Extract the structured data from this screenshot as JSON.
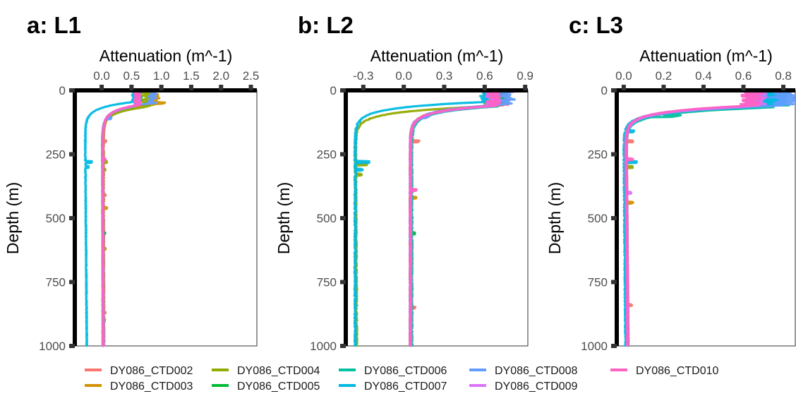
{
  "chart_data": {
    "type": "line",
    "y_axis_label": "Depth (m)",
    "x_axis_label": "Attenuation (m^-1)",
    "y_ticks": [
      "0",
      "250",
      "500",
      "750",
      "1000"
    ],
    "ylim": [
      1000,
      0
    ],
    "legend_position": "bottom",
    "grid": false,
    "legend": [
      {
        "name": "DY086_CTD002",
        "color": "#F8766D"
      },
      {
        "name": "DY086_CTD003",
        "color": "#D39200"
      },
      {
        "name": "DY086_CTD004",
        "color": "#93AA00"
      },
      {
        "name": "DY086_CTD005",
        "color": "#00BA38"
      },
      {
        "name": "DY086_CTD006",
        "color": "#00C19F"
      },
      {
        "name": "DY086_CTD007",
        "color": "#00B9E3"
      },
      {
        "name": "DY086_CTD008",
        "color": "#619CFF"
      },
      {
        "name": "DY086_CTD009",
        "color": "#DB72FB"
      },
      {
        "name": "DY086_CTD010",
        "color": "#FF61C3"
      }
    ],
    "panels": [
      {
        "title": "a: L1",
        "x_ticks": [
          {
            "label": "0.0",
            "value": 0.0
          },
          {
            "label": "0.5",
            "value": 0.5
          },
          {
            "label": "1.0",
            "value": 1.0
          },
          {
            "label": "1.5",
            "value": 1.5
          },
          {
            "label": "2.0",
            "value": 2.0
          },
          {
            "label": "2.5",
            "value": 2.5
          }
        ],
        "xlim": [
          -0.45,
          2.6
        ],
        "series": [
          {
            "color": "#F8766D",
            "surface": 0.62,
            "mld": 60,
            "deep": 0.02,
            "tail": 0.03,
            "noise": 0.006,
            "spikes": [
              [
                200,
                0.05
              ],
              [
                410,
                0.04
              ],
              [
                870,
                0.03
              ]
            ]
          },
          {
            "color": "#D39200",
            "surface": 0.9,
            "mld": 55,
            "deep": 0.03,
            "tail": 0.04,
            "noise": 0.007,
            "spikes": [
              [
                50,
                0.1
              ],
              [
                460,
                0.05
              ],
              [
                620,
                0.03
              ]
            ]
          },
          {
            "color": "#93AA00",
            "surface": 0.75,
            "mld": 65,
            "deep": 0.01,
            "tail": 0.02,
            "noise": 0.006,
            "spikes": [
              [
                280,
                0.07
              ],
              [
                310,
                0.05
              ],
              [
                900,
                0.03
              ]
            ]
          },
          {
            "color": "#00BA38",
            "surface": 0.62,
            "mld": 58,
            "deep": 0.02,
            "tail": 0.03,
            "noise": 0.005,
            "spikes": [
              [
                560,
                0.03
              ]
            ]
          },
          {
            "color": "#00C19F",
            "surface": 0.58,
            "mld": 62,
            "deep": 0.01,
            "tail": 0.02,
            "noise": 0.005,
            "spikes": []
          },
          {
            "color": "#00B9E3",
            "surface": 0.55,
            "mld": 45,
            "deep": -0.28,
            "tail": -0.25,
            "noise": 0.006,
            "spikes": [
              [
                280,
                0.1
              ],
              [
                300,
                0.05
              ]
            ]
          },
          {
            "color": "#619CFF",
            "surface": 0.85,
            "mld": 50,
            "deep": 0.02,
            "tail": 0.03,
            "noise": 0.006,
            "spikes": [
              [
                110,
                0.08
              ]
            ]
          },
          {
            "color": "#DB72FB",
            "surface": 0.6,
            "mld": 60,
            "deep": 0.02,
            "tail": 0.03,
            "noise": 0.005,
            "spikes": []
          },
          {
            "color": "#FF61C3",
            "surface": 0.6,
            "mld": 58,
            "deep": 0.02,
            "tail": 0.02,
            "noise": 0.006,
            "spikes": [
              [
                270,
                0.04
              ]
            ]
          }
        ]
      },
      {
        "title": "b: L2",
        "x_ticks": [
          {
            "label": "-0.3",
            "value": -0.3
          },
          {
            "label": "0.0",
            "value": 0.0
          },
          {
            "label": "0.3",
            "value": 0.3
          },
          {
            "label": "0.6",
            "value": 0.6
          },
          {
            "label": "0.9",
            "value": 0.9
          }
        ],
        "xlim": [
          -0.43,
          0.92
        ],
        "series": [
          {
            "color": "#F8766D",
            "surface": 0.72,
            "mld": 60,
            "deep": 0.05,
            "tail": 0.05,
            "noise": 0.006,
            "spikes": [
              [
                200,
                0.06
              ],
              [
                850,
                0.03
              ]
            ]
          },
          {
            "color": "#D39200",
            "surface": 0.68,
            "mld": 58,
            "deep": 0.05,
            "tail": 0.05,
            "noise": 0.006,
            "spikes": [
              [
                420,
                0.04
              ]
            ]
          },
          {
            "color": "#93AA00",
            "surface": 0.65,
            "mld": 62,
            "deep": -0.36,
            "tail": -0.35,
            "noise": 0.006,
            "spikes": [
              [
                290,
                0.08
              ],
              [
                330,
                0.04
              ]
            ]
          },
          {
            "color": "#00BA38",
            "surface": 0.7,
            "mld": 60,
            "deep": 0.05,
            "tail": 0.05,
            "noise": 0.005,
            "spikes": [
              [
                560,
                0.03
              ]
            ]
          },
          {
            "color": "#00C19F",
            "surface": 0.66,
            "mld": 64,
            "deep": 0.06,
            "tail": 0.06,
            "noise": 0.005,
            "spikes": []
          },
          {
            "color": "#00B9E3",
            "surface": 0.62,
            "mld": 45,
            "deep": -0.36,
            "tail": -0.36,
            "noise": 0.006,
            "spikes": [
              [
                280,
                0.1
              ],
              [
                310,
                0.05
              ]
            ]
          },
          {
            "color": "#619CFF",
            "surface": 0.76,
            "mld": 55,
            "deep": 0.05,
            "tail": 0.05,
            "noise": 0.006,
            "spikes": [
              [
                105,
                0.05
              ]
            ]
          },
          {
            "color": "#DB72FB",
            "surface": 0.66,
            "mld": 62,
            "deep": 0.05,
            "tail": 0.05,
            "noise": 0.005,
            "spikes": []
          },
          {
            "color": "#FF61C3",
            "surface": 0.66,
            "mld": 60,
            "deep": 0.05,
            "tail": 0.05,
            "noise": 0.006,
            "spikes": [
              [
                390,
                0.04
              ]
            ]
          }
        ]
      },
      {
        "title": "c: L3",
        "x_ticks": [
          {
            "label": "0.0",
            "value": 0.0
          },
          {
            "label": "0.2",
            "value": 0.2
          },
          {
            "label": "0.4",
            "value": 0.4
          },
          {
            "label": "0.6",
            "value": 0.6
          },
          {
            "label": "0.8",
            "value": 0.8
          }
        ],
        "xlim": [
          -0.035,
          0.86
        ],
        "series": [
          {
            "color": "#F8766D",
            "surface": 0.68,
            "mld": 60,
            "deep": 0.01,
            "tail": 0.02,
            "noise": 0.004,
            "spikes": [
              [
                200,
                0.03
              ],
              [
                840,
                0.02
              ]
            ]
          },
          {
            "color": "#D39200",
            "surface": 0.66,
            "mld": 62,
            "deep": 0.01,
            "tail": 0.02,
            "noise": 0.004,
            "spikes": [
              [
                440,
                0.03
              ]
            ]
          },
          {
            "color": "#93AA00",
            "surface": 0.7,
            "mld": 64,
            "deep": 0.01,
            "tail": 0.02,
            "noise": 0.004,
            "spikes": [
              [
                300,
                0.03
              ]
            ]
          },
          {
            "color": "#00BA38",
            "surface": 0.72,
            "mld": 62,
            "deep": 0.01,
            "tail": 0.02,
            "noise": 0.004,
            "spikes": []
          },
          {
            "color": "#00C19F",
            "surface": 0.76,
            "mld": 66,
            "deep": 0.01,
            "tail": 0.02,
            "noise": 0.004,
            "spikes": [
              [
                100,
                0.1
              ]
            ]
          },
          {
            "color": "#00B9E3",
            "surface": 0.74,
            "mld": 58,
            "deep": 0.0,
            "tail": 0.01,
            "noise": 0.004,
            "spikes": [
              [
                280,
                0.06
              ],
              [
                160,
                0.04
              ]
            ]
          },
          {
            "color": "#619CFF",
            "surface": 0.8,
            "mld": 60,
            "deep": 0.01,
            "tail": 0.02,
            "noise": 0.004,
            "spikes": [
              [
                40,
                0.06
              ]
            ]
          },
          {
            "color": "#DB72FB",
            "surface": 0.66,
            "mld": 62,
            "deep": 0.01,
            "tail": 0.02,
            "noise": 0.004,
            "spikes": [
              [
                400,
                0.02
              ]
            ]
          },
          {
            "color": "#FF61C3",
            "surface": 0.64,
            "mld": 60,
            "deep": 0.01,
            "tail": 0.02,
            "noise": 0.004,
            "spikes": [
              [
                270,
                0.03
              ]
            ]
          }
        ]
      }
    ]
  }
}
